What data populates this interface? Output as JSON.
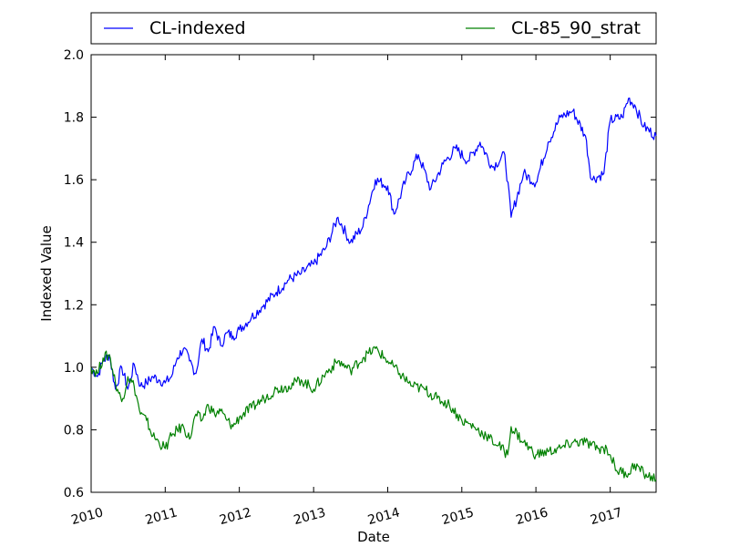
{
  "chart_data": {
    "type": "line",
    "xlabel": "Date",
    "ylabel": "Indexed Value",
    "x_range": [
      "2010-01-01",
      "2017-08-15"
    ],
    "ylim": [
      0.6,
      2.0
    ],
    "x_ticks": [
      {
        "date": "2010-01-01",
        "label": "2010"
      },
      {
        "date": "2011-01-01",
        "label": "2011"
      },
      {
        "date": "2012-01-01",
        "label": "2012"
      },
      {
        "date": "2013-01-01",
        "label": "2013"
      },
      {
        "date": "2014-01-01",
        "label": "2014"
      },
      {
        "date": "2015-01-01",
        "label": "2015"
      },
      {
        "date": "2016-01-01",
        "label": "2016"
      },
      {
        "date": "2017-01-01",
        "label": "2017"
      }
    ],
    "y_ticks": [
      {
        "value": 0.6,
        "label": "0.6"
      },
      {
        "value": 0.8,
        "label": "0.8"
      },
      {
        "value": 1.0,
        "label": "1.0"
      },
      {
        "value": 1.2,
        "label": "1.2"
      },
      {
        "value": 1.4,
        "label": "1.4"
      },
      {
        "value": 1.6,
        "label": "1.6"
      },
      {
        "value": 1.8,
        "label": "1.8"
      },
      {
        "value": 2.0,
        "label": "2.0"
      }
    ],
    "grid": false,
    "legend": {
      "placement": "above plot, expanded across width",
      "columns": 2
    },
    "series": [
      {
        "name": "CL-indexed",
        "color": "#0000ff",
        "points": [
          [
            "2010-01-01",
            1.0
          ],
          [
            "2010-02-01",
            0.97
          ],
          [
            "2010-03-01",
            1.02
          ],
          [
            "2010-04-01",
            1.04
          ],
          [
            "2010-05-01",
            0.93
          ],
          [
            "2010-06-01",
            1.0
          ],
          [
            "2010-07-01",
            0.93
          ],
          [
            "2010-08-01",
            1.01
          ],
          [
            "2010-09-01",
            0.94
          ],
          [
            "2010-10-01",
            0.95
          ],
          [
            "2010-11-01",
            0.97
          ],
          [
            "2010-12-01",
            0.96
          ],
          [
            "2011-01-01",
            0.95
          ],
          [
            "2011-02-01",
            0.97
          ],
          [
            "2011-03-01",
            1.03
          ],
          [
            "2011-04-01",
            1.06
          ],
          [
            "2011-05-01",
            1.02
          ],
          [
            "2011-06-01",
            0.98
          ],
          [
            "2011-07-01",
            1.09
          ],
          [
            "2011-08-01",
            1.05
          ],
          [
            "2011-09-01",
            1.13
          ],
          [
            "2011-10-01",
            1.07
          ],
          [
            "2011-11-01",
            1.11
          ],
          [
            "2011-12-01",
            1.1
          ],
          [
            "2012-01-01",
            1.12
          ],
          [
            "2012-03-01",
            1.16
          ],
          [
            "2012-05-01",
            1.2
          ],
          [
            "2012-07-01",
            1.24
          ],
          [
            "2012-09-01",
            1.28
          ],
          [
            "2012-11-01",
            1.3
          ],
          [
            "2013-01-01",
            1.33
          ],
          [
            "2013-03-01",
            1.38
          ],
          [
            "2013-05-01",
            1.48
          ],
          [
            "2013-07-01",
            1.4
          ],
          [
            "2013-09-01",
            1.45
          ],
          [
            "2013-11-01",
            1.6
          ],
          [
            "2014-01-01",
            1.58
          ],
          [
            "2014-02-01",
            1.49
          ],
          [
            "2014-04-01",
            1.6
          ],
          [
            "2014-06-01",
            1.68
          ],
          [
            "2014-08-01",
            1.57
          ],
          [
            "2014-10-01",
            1.65
          ],
          [
            "2014-12-01",
            1.7
          ],
          [
            "2015-02-01",
            1.66
          ],
          [
            "2015-04-01",
            1.72
          ],
          [
            "2015-06-01",
            1.64
          ],
          [
            "2015-08-01",
            1.68
          ],
          [
            "2015-09-01",
            1.48
          ],
          [
            "2015-11-01",
            1.62
          ],
          [
            "2016-01-01",
            1.59
          ],
          [
            "2016-03-01",
            1.72
          ],
          [
            "2016-05-01",
            1.8
          ],
          [
            "2016-07-01",
            1.82
          ],
          [
            "2016-09-01",
            1.74
          ],
          [
            "2016-10-01",
            1.6
          ],
          [
            "2016-12-01",
            1.62
          ],
          [
            "2017-01-01",
            1.79
          ],
          [
            "2017-03-01",
            1.8
          ],
          [
            "2017-04-01",
            1.86
          ],
          [
            "2017-05-01",
            1.84
          ],
          [
            "2017-06-15",
            1.77
          ],
          [
            "2017-08-15",
            1.74
          ]
        ]
      },
      {
        "name": "CL-85_90_strat",
        "color": "#008000",
        "points": [
          [
            "2010-01-01",
            1.0
          ],
          [
            "2010-02-01",
            0.98
          ],
          [
            "2010-03-01",
            1.03
          ],
          [
            "2010-04-01",
            1.04
          ],
          [
            "2010-05-01",
            0.95
          ],
          [
            "2010-06-01",
            0.89
          ],
          [
            "2010-07-01",
            0.97
          ],
          [
            "2010-08-01",
            0.94
          ],
          [
            "2010-09-01",
            0.85
          ],
          [
            "2010-10-01",
            0.83
          ],
          [
            "2010-11-01",
            0.78
          ],
          [
            "2010-12-01",
            0.76
          ],
          [
            "2011-01-01",
            0.74
          ],
          [
            "2011-02-01",
            0.78
          ],
          [
            "2011-03-01",
            0.8
          ],
          [
            "2011-04-01",
            0.81
          ],
          [
            "2011-05-01",
            0.77
          ],
          [
            "2011-06-01",
            0.85
          ],
          [
            "2011-07-01",
            0.83
          ],
          [
            "2011-08-01",
            0.88
          ],
          [
            "2011-09-01",
            0.85
          ],
          [
            "2011-10-01",
            0.86
          ],
          [
            "2011-11-01",
            0.83
          ],
          [
            "2011-12-01",
            0.81
          ],
          [
            "2012-01-01",
            0.84
          ],
          [
            "2012-03-01",
            0.87
          ],
          [
            "2012-05-01",
            0.9
          ],
          [
            "2012-07-01",
            0.93
          ],
          [
            "2012-09-01",
            0.94
          ],
          [
            "2012-11-01",
            0.96
          ],
          [
            "2013-01-01",
            0.93
          ],
          [
            "2013-03-01",
            0.98
          ],
          [
            "2013-05-01",
            1.02
          ],
          [
            "2013-07-01",
            0.99
          ],
          [
            "2013-09-01",
            1.03
          ],
          [
            "2013-11-01",
            1.06
          ],
          [
            "2014-01-01",
            1.02
          ],
          [
            "2014-03-01",
            0.98
          ],
          [
            "2014-05-01",
            0.94
          ],
          [
            "2014-07-01",
            0.93
          ],
          [
            "2014-09-01",
            0.9
          ],
          [
            "2014-11-01",
            0.88
          ],
          [
            "2015-01-01",
            0.83
          ],
          [
            "2015-03-01",
            0.81
          ],
          [
            "2015-05-01",
            0.78
          ],
          [
            "2015-07-01",
            0.75
          ],
          [
            "2015-08-15",
            0.72
          ],
          [
            "2015-09-01",
            0.81
          ],
          [
            "2015-11-01",
            0.76
          ],
          [
            "2016-01-01",
            0.72
          ],
          [
            "2016-03-01",
            0.73
          ],
          [
            "2016-05-01",
            0.74
          ],
          [
            "2016-07-01",
            0.76
          ],
          [
            "2016-09-01",
            0.76
          ],
          [
            "2016-11-01",
            0.74
          ],
          [
            "2016-12-15",
            0.74
          ],
          [
            "2017-01-01",
            0.72
          ],
          [
            "2017-02-01",
            0.67
          ],
          [
            "2017-04-01",
            0.66
          ],
          [
            "2017-05-01",
            0.69
          ],
          [
            "2017-06-15",
            0.66
          ],
          [
            "2017-08-15",
            0.64
          ]
        ]
      }
    ]
  }
}
